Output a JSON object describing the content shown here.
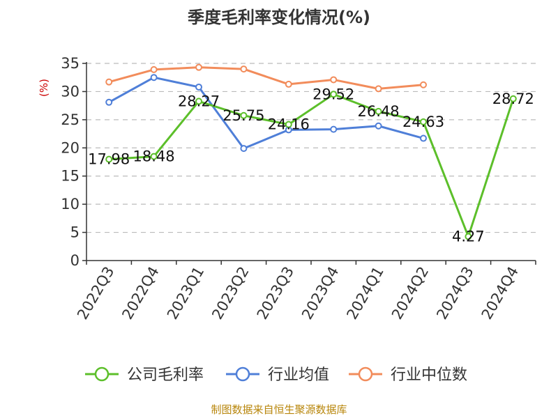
{
  "chart_data": {
    "type": "line",
    "title": "季度毛利率变化情况(%)",
    "ylabel": "(%)",
    "ylim": [
      0,
      35
    ],
    "yticks": [
      0,
      5,
      10,
      15,
      20,
      25,
      30,
      35
    ],
    "categories": [
      "2022Q3",
      "2022Q4",
      "2023Q1",
      "2023Q2",
      "2023Q3",
      "2023Q4",
      "2024Q1",
      "2024Q2",
      "2024Q3",
      "2024Q4"
    ],
    "grid": true,
    "legend_position": "bottom",
    "series": [
      {
        "name": "公司毛利率",
        "color": "#5cbf2a",
        "values": [
          17.98,
          18.48,
          28.27,
          25.75,
          24.16,
          29.52,
          26.48,
          24.63,
          4.27,
          28.72
        ],
        "labels": [
          "17.98",
          "18.48",
          "28.27",
          "25.75",
          "24.16",
          "29.52",
          "26.48",
          "24.63",
          "4.27",
          "28.72"
        ]
      },
      {
        "name": "行业均值",
        "color": "#4f7fd8",
        "values": [
          28.1,
          32.5,
          30.8,
          19.9,
          23.2,
          23.3,
          23.9,
          21.7,
          null,
          null
        ]
      },
      {
        "name": "行业中位数",
        "color": "#f28c5b",
        "values": [
          31.7,
          33.9,
          34.3,
          34.0,
          31.3,
          32.1,
          30.5,
          31.2,
          null,
          null
        ]
      }
    ]
  },
  "source": "制图数据来自恒生聚源数据库"
}
